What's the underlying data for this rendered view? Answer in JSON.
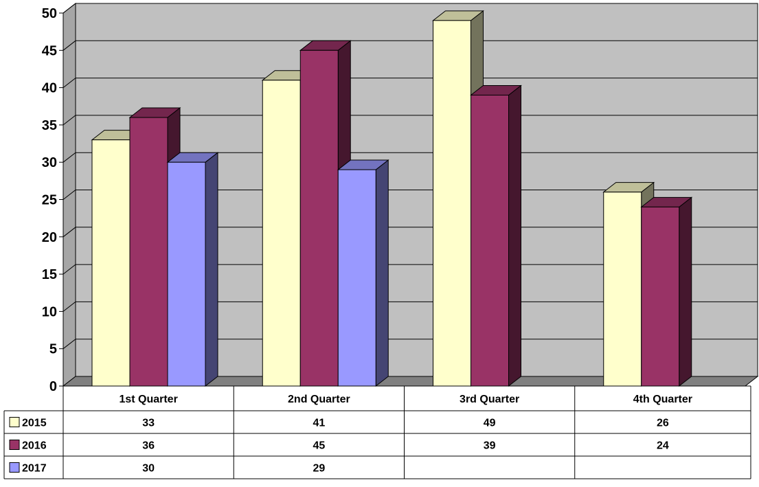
{
  "chart_data": {
    "type": "bar",
    "style": "3d-clustered-column-with-data-table",
    "categories": [
      "1st Quarter",
      "2nd Quarter",
      "3rd Quarter",
      "4th Quarter"
    ],
    "series": [
      {
        "name": "2015",
        "values": [
          33,
          41,
          49,
          26
        ],
        "color": "#ffffcc"
      },
      {
        "name": "2016",
        "values": [
          36,
          45,
          39,
          24
        ],
        "color": "#993366"
      },
      {
        "name": "2017",
        "values": [
          30,
          29,
          null,
          null
        ],
        "color": "#9999ff"
      }
    ],
    "ylim": [
      0,
      50
    ],
    "yticks": [
      0,
      5,
      10,
      15,
      20,
      25,
      30,
      35,
      40,
      45,
      50
    ],
    "grid": true,
    "wall_color": "#c0c0c0",
    "floor_color": "#808080",
    "legend": "data-table-left",
    "xlabel": "",
    "ylabel": "",
    "title": ""
  }
}
